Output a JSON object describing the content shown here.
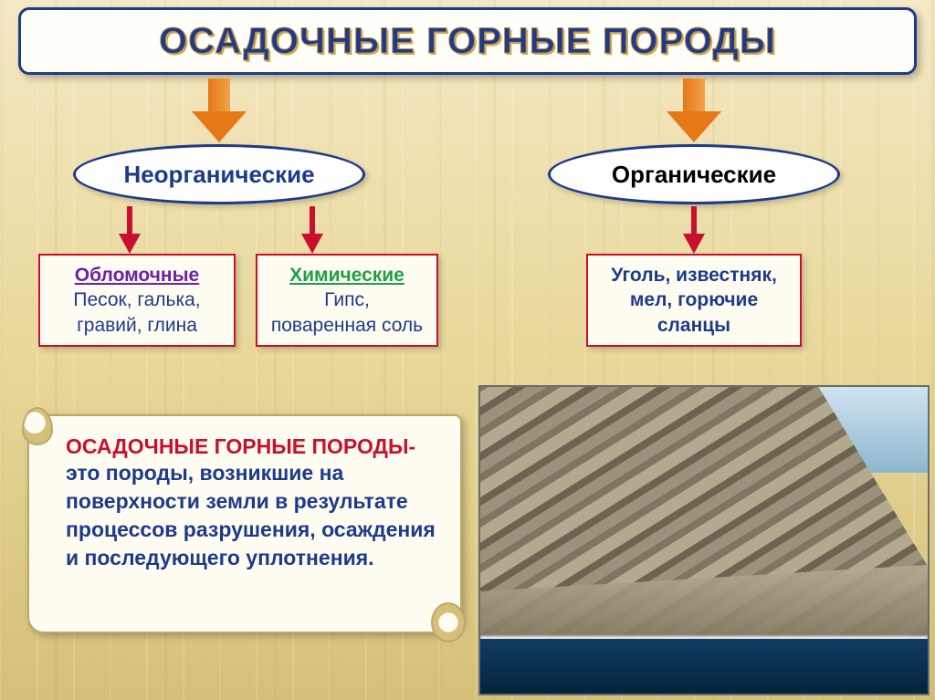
{
  "title": "ОСАДОЧНЫЕ ГОРНЫЕ ПОРОДЫ",
  "colors": {
    "title_text": "#1e3a8a",
    "title_outline": "#b8934a",
    "big_arrow": "#e67817",
    "ellipse_border": "#1e3a8a",
    "red_arrow": "#c8102e",
    "box_border": "#c8102e",
    "scroll_header": "#c8102e",
    "body_blue": "#1e3a8a",
    "clastic_header": "#6b21a8",
    "chemical_header": "#1e9e4a",
    "bg_top": "#f5e8c4",
    "bg_bottom": "#d4c078"
  },
  "fonts": {
    "title_pt": 40,
    "ellipse_pt": 26,
    "box_pt": 21,
    "scroll_pt": 23
  },
  "categories": {
    "inorganic": {
      "label": "Неорганические"
    },
    "organic": {
      "label": "Органические"
    }
  },
  "boxes": {
    "clastic": {
      "header": "Обломочные",
      "body": "Песок, галька, гравий, глина"
    },
    "chemical": {
      "header": "Химические",
      "body": "Гипс, поваренная соль"
    },
    "organic": {
      "body": "Уголь, известняк, мел, горючие сланцы"
    }
  },
  "definition": {
    "header": "ОСАДОЧНЫЕ ГОРНЫЕ ПОРОДЫ-",
    "body": "это породы, возникшие на поверхности земли в результате процессов разрушения, осаждения и последующего уплотнения."
  },
  "structure": {
    "type": "tree",
    "root": "ОСАДОЧНЫЕ ГОРНЫЕ ПОРОДЫ",
    "children": [
      {
        "label": "Неорганические",
        "arrow_color": "#e67817",
        "children": [
          {
            "label": "Обломочные",
            "arrow_color": "#c8102e",
            "examples": [
              "Песок",
              "галька",
              "гравий",
              "глина"
            ]
          },
          {
            "label": "Химические",
            "arrow_color": "#c8102e",
            "examples": [
              "Гипс",
              "поваренная соль"
            ]
          }
        ]
      },
      {
        "label": "Органические",
        "arrow_color": "#e67817",
        "children": [
          {
            "arrow_color": "#c8102e",
            "examples": [
              "Уголь",
              "известняк",
              "мел",
              "горючие сланцы"
            ]
          }
        ]
      }
    ]
  },
  "photo": {
    "description": "Coastal cliff of layered sedimentary rock meeting the sea",
    "sky_color": "#8db7cf",
    "rock_colors": [
      "#9a927a",
      "#7f7560",
      "#b3a98e",
      "#6d6350"
    ],
    "sea_color": "#0f3d63"
  }
}
